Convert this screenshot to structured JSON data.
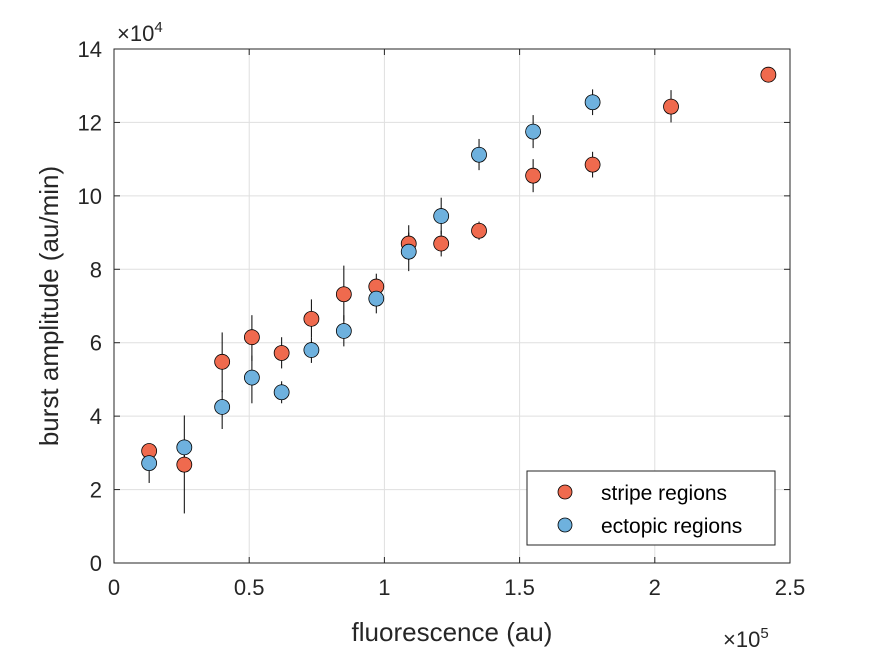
{
  "chart_data": {
    "type": "scatter",
    "xlabel": "fluorescence (au)",
    "ylabel": "burst amplitude (au/min)",
    "x_exponent_label": "×10",
    "x_exponent_power": "5",
    "y_exponent_label": "×10",
    "y_exponent_power": "4",
    "xlim": [
      0,
      250000
    ],
    "ylim": [
      0,
      140000
    ],
    "x_ticks": [
      0,
      50000,
      100000,
      150000,
      200000,
      250000
    ],
    "x_tick_labels": [
      "0",
      "0.5",
      "1",
      "1.5",
      "2",
      "2.5"
    ],
    "y_ticks": [
      0,
      20000,
      40000,
      60000,
      80000,
      100000,
      120000,
      140000
    ],
    "y_tick_labels": [
      "0",
      "2",
      "4",
      "6",
      "8",
      "10",
      "12",
      "14"
    ],
    "grid": true,
    "legend_position": "bottom-right",
    "series": [
      {
        "name": "stripe regions",
        "color": "#ef6a4e",
        "points": [
          {
            "x": 13000,
            "y": 30500,
            "lo": 28500,
            "hi": 32500
          },
          {
            "x": 26000,
            "y": 26800,
            "lo": 13500,
            "hi": 32000
          },
          {
            "x": 40000,
            "y": 54800,
            "lo": 46500,
            "hi": 62800
          },
          {
            "x": 51000,
            "y": 61500,
            "lo": 55000,
            "hi": 67500
          },
          {
            "x": 62000,
            "y": 57200,
            "lo": 53000,
            "hi": 61500
          },
          {
            "x": 73000,
            "y": 66500,
            "lo": 61500,
            "hi": 71800
          },
          {
            "x": 85000,
            "y": 73200,
            "lo": 66000,
            "hi": 81000
          },
          {
            "x": 97000,
            "y": 75300,
            "lo": 72000,
            "hi": 78800
          },
          {
            "x": 109000,
            "y": 87000,
            "lo": 82500,
            "hi": 92000
          },
          {
            "x": 121000,
            "y": 87000,
            "lo": 83500,
            "hi": 90500
          },
          {
            "x": 135000,
            "y": 90500,
            "lo": 88000,
            "hi": 93000
          },
          {
            "x": 155000,
            "y": 105500,
            "lo": 101000,
            "hi": 110000
          },
          {
            "x": 177000,
            "y": 108500,
            "lo": 105000,
            "hi": 112000
          },
          {
            "x": 206000,
            "y": 124300,
            "lo": 120000,
            "hi": 128800
          },
          {
            "x": 242000,
            "y": 133000,
            "lo": 131000,
            "hi": 135000
          }
        ]
      },
      {
        "name": "ectopic regions",
        "color": "#6eb1de",
        "points": [
          {
            "x": 13000,
            "y": 27200,
            "lo": 21800,
            "hi": 32000
          },
          {
            "x": 26000,
            "y": 31500,
            "lo": 27500,
            "hi": 40200
          },
          {
            "x": 40000,
            "y": 42500,
            "lo": 36500,
            "hi": 47000
          },
          {
            "x": 51000,
            "y": 50500,
            "lo": 43500,
            "hi": 56500
          },
          {
            "x": 62000,
            "y": 46500,
            "lo": 43500,
            "hi": 49500
          },
          {
            "x": 73000,
            "y": 58000,
            "lo": 54500,
            "hi": 61500
          },
          {
            "x": 85000,
            "y": 63200,
            "lo": 59000,
            "hi": 67500
          },
          {
            "x": 97000,
            "y": 72000,
            "lo": 68000,
            "hi": 75500
          },
          {
            "x": 109000,
            "y": 84800,
            "lo": 79500,
            "hi": 90000
          },
          {
            "x": 121000,
            "y": 94500,
            "lo": 89500,
            "hi": 99500
          },
          {
            "x": 135000,
            "y": 111200,
            "lo": 107000,
            "hi": 115500
          },
          {
            "x": 155000,
            "y": 117500,
            "lo": 113000,
            "hi": 122000
          },
          {
            "x": 177000,
            "y": 125500,
            "lo": 122000,
            "hi": 129000
          }
        ]
      }
    ]
  }
}
